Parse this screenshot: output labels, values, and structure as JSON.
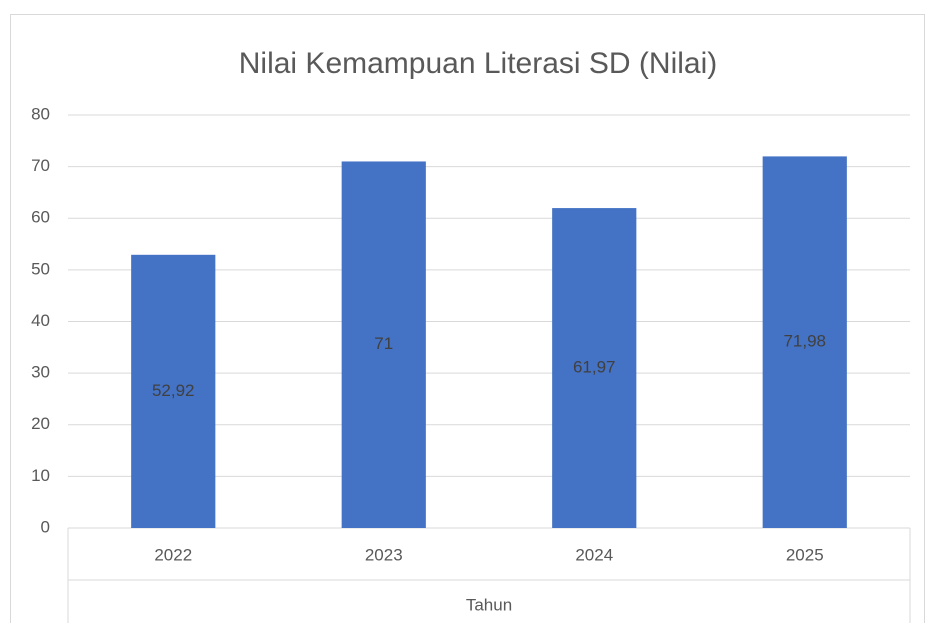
{
  "chart_data": {
    "type": "bar",
    "title": "Nilai Kemampuan Literasi SD (Nilai)",
    "x_label": "Tahun",
    "categories": [
      "2022",
      "2023",
      "2024",
      "2025"
    ],
    "values": [
      52.92,
      71,
      61.97,
      71.98
    ],
    "value_labels": [
      "52,92",
      "71",
      "61,97",
      "71,98"
    ],
    "color": "#4472c4",
    "ylim": [
      0,
      80
    ],
    "yticks": [
      0,
      10,
      20,
      30,
      40,
      50,
      60,
      70,
      80
    ],
    "grid": true
  }
}
